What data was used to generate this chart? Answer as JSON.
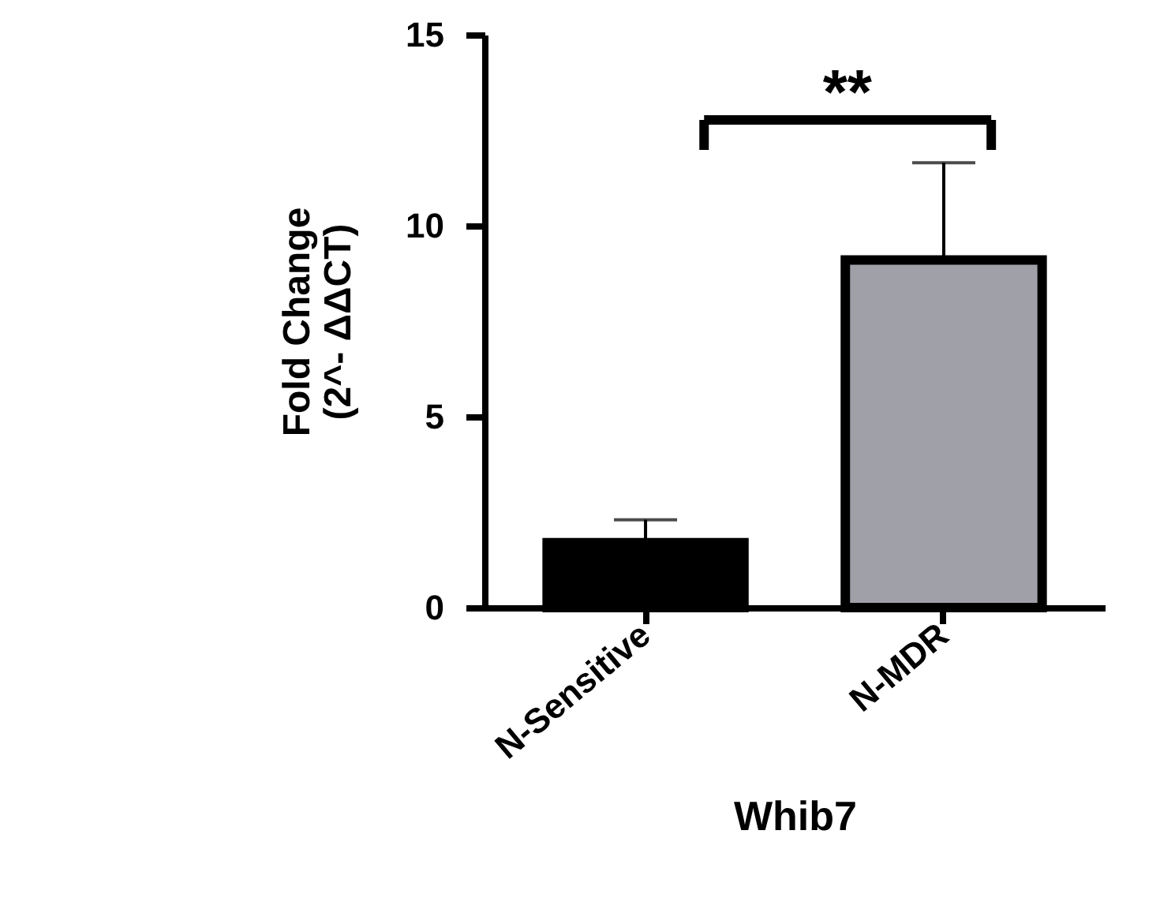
{
  "chart_data": {
    "type": "bar",
    "categories": [
      "N-Sensitive",
      "N-MDR"
    ],
    "values": [
      1.7,
      9.1
    ],
    "errors": [
      0.6,
      2.55
    ],
    "colors": [
      "#000000",
      "#a0a0a8"
    ],
    "xlabel": "Whib7",
    "ylabel": "Fold Change\n(2^- ΔΔCT)",
    "ylim": [
      0,
      15
    ],
    "yticks": [
      0,
      5,
      10,
      15
    ],
    "grid": false,
    "annotations": [
      "**"
    ]
  }
}
